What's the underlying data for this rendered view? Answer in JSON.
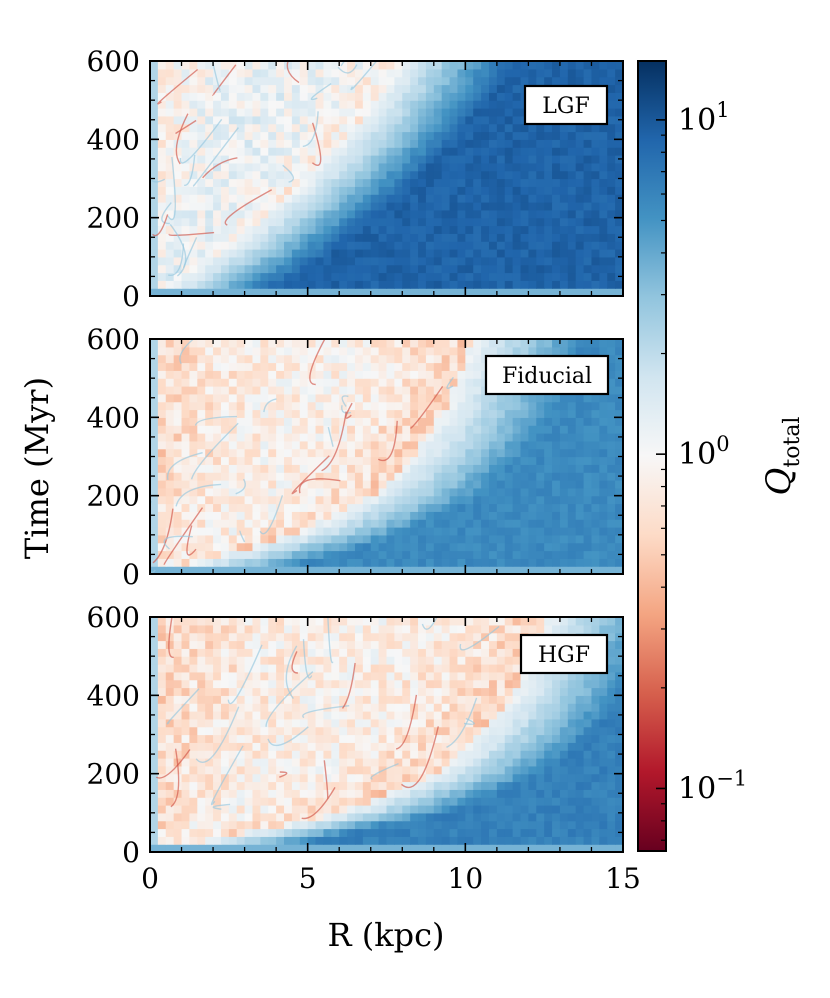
{
  "chart_data": {
    "type": "heatmap",
    "xlabel": "R  (kpc)",
    "ylabel": "Time  (Myr)",
    "xlim": [
      0,
      15
    ],
    "ylim": [
      0,
      600
    ],
    "x_ticks": [
      0,
      5,
      10,
      15
    ],
    "x_tick_labels": [
      "0",
      "5",
      "10",
      "15"
    ],
    "y_ticks": [
      0,
      200,
      400,
      600
    ],
    "y_tick_labels": [
      "0",
      "200",
      "400",
      "600"
    ],
    "colorbar": {
      "label": "Q",
      "label_sub": "total",
      "scale": "log",
      "range": [
        0.065,
        15
      ],
      "ticks": [
        {
          "value": 10,
          "base": "10",
          "exp": "1"
        },
        {
          "value": 1,
          "base": "10",
          "exp": "0"
        },
        {
          "value": 0.1,
          "base": "10",
          "exp": "−1"
        }
      ],
      "colormap": [
        "#67001f",
        "#b2182b",
        "#d6604d",
        "#f4a582",
        "#fddbc7",
        "#f7f7f7",
        "#d1e5f0",
        "#92c5de",
        "#4393c3",
        "#2166ac",
        "#053061"
      ]
    },
    "panels": [
      {
        "label": "LGF",
        "unstable_front_kpc": [
          [
            0,
            0
          ],
          [
            100,
            2.0
          ],
          [
            200,
            3.6
          ],
          [
            300,
            5.0
          ],
          [
            400,
            6.2
          ],
          [
            500,
            7.2
          ],
          [
            600,
            8.0
          ]
        ],
        "outer_log10_Q": 0.95
      },
      {
        "label": "Fiducial",
        "unstable_front_kpc": [
          [
            0,
            0
          ],
          [
            100,
            4.5
          ],
          [
            200,
            7.0
          ],
          [
            300,
            8.3
          ],
          [
            400,
            9.2
          ],
          [
            500,
            9.8
          ],
          [
            600,
            10.2
          ]
        ],
        "outer_log10_Q": 0.75
      },
      {
        "label": "HGF",
        "unstable_front_kpc": [
          [
            0,
            0
          ],
          [
            100,
            6.0
          ],
          [
            200,
            9.0
          ],
          [
            300,
            10.5
          ],
          [
            400,
            11.5
          ],
          [
            500,
            12.2
          ],
          [
            600,
            12.5
          ]
        ],
        "outer_log10_Q": 0.8
      }
    ]
  }
}
